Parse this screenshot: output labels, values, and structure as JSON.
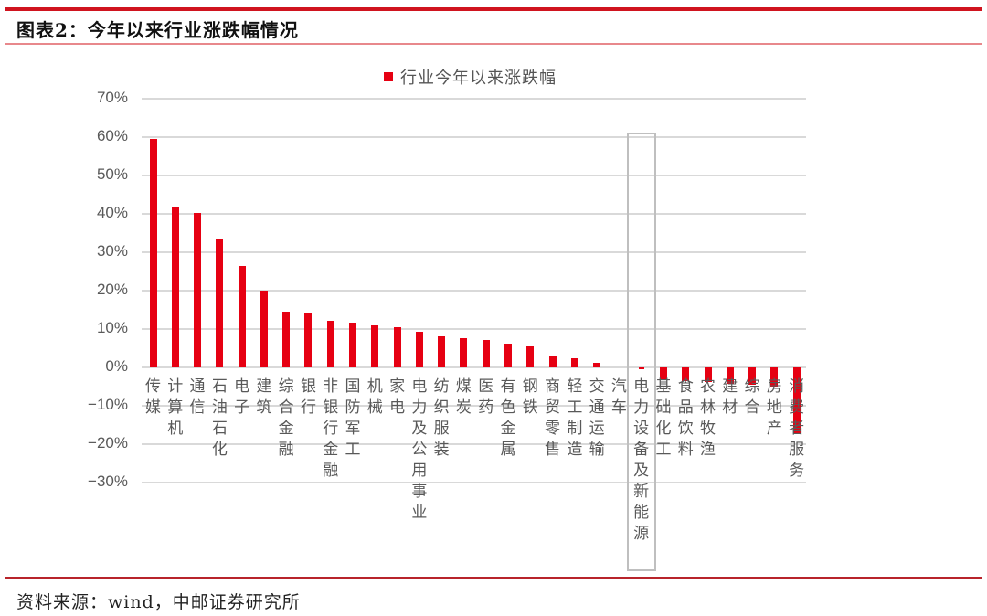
{
  "header": {
    "title": "图表2：今年以来行业涨跌幅情况"
  },
  "footer": {
    "source": "资料来源：wind，中邮证券研究所"
  },
  "colors": {
    "bar": "#e60012",
    "rule_top": "#d0141f",
    "grid": "#d9d9d9",
    "highlight_box": "#bfbfbf"
  },
  "legend": {
    "label": "行业今年以来涨跌幅"
  },
  "highlight": {
    "category": "电力设备及新能源"
  },
  "chart_data": {
    "type": "bar",
    "title": "",
    "xlabel": "",
    "ylabel": "",
    "ylim": [
      -0.3,
      0.7
    ],
    "yticks": [
      "70%",
      "60%",
      "50%",
      "40%",
      "30%",
      "20%",
      "10%",
      "0%",
      "-10%",
      "-20%",
      "-30%"
    ],
    "grid": true,
    "legend_position": "top",
    "categories": [
      "传媒",
      "计算机",
      "通信",
      "石油石化",
      "电子",
      "建筑",
      "综合金融",
      "银行",
      "非银行金融",
      "国防军工",
      "机械",
      "家电",
      "电力及公用事业",
      "纺织服装",
      "煤炭",
      "医药",
      "有色金属",
      "钢铁",
      "商贸零售",
      "轻工制造",
      "交通运输",
      "汽车",
      "电力设备及新能源",
      "基础化工",
      "食品饮料",
      "农林牧渔",
      "建材",
      "综合",
      "房地产",
      "消费者服务"
    ],
    "series": [
      {
        "name": "行业今年以来涨跌幅",
        "values": [
          0.595,
          0.418,
          0.402,
          0.333,
          0.265,
          0.2,
          0.145,
          0.143,
          0.121,
          0.117,
          0.11,
          0.105,
          0.092,
          0.08,
          0.076,
          0.071,
          0.062,
          0.055,
          0.031,
          0.023,
          0.012,
          0.0,
          -0.003,
          -0.03,
          -0.035,
          -0.038,
          -0.042,
          -0.045,
          -0.05,
          -0.174
        ]
      }
    ]
  }
}
